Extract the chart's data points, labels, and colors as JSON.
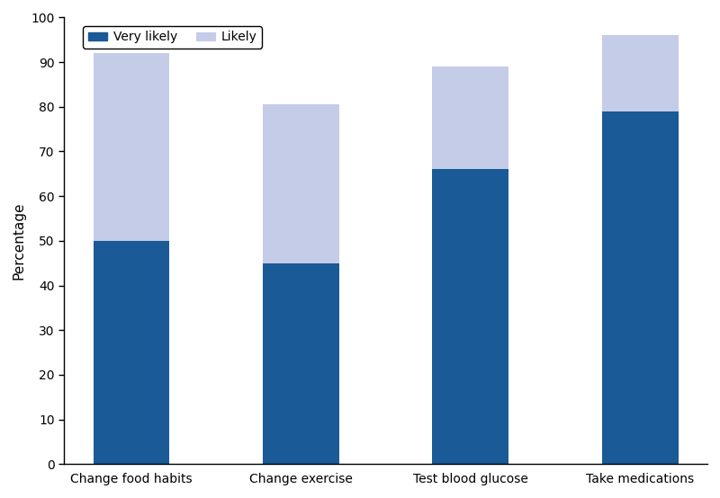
{
  "categories": [
    "Change food habits",
    "Change exercise",
    "Test blood glucose",
    "Take medications"
  ],
  "very_likely": [
    50,
    45,
    66,
    79
  ],
  "likely": [
    42,
    35.5,
    23,
    17
  ],
  "very_likely_color": "#1a5a96",
  "likely_color": "#c5cce8",
  "ylabel": "Percentage",
  "ylim": [
    0,
    100
  ],
  "yticks": [
    0,
    10,
    20,
    30,
    40,
    50,
    60,
    70,
    80,
    90,
    100
  ],
  "legend_labels": [
    "Very likely",
    "Likely"
  ],
  "bar_width": 0.45,
  "figsize": [
    8.0,
    5.54
  ],
  "dpi": 100,
  "background_color": "#ffffff"
}
